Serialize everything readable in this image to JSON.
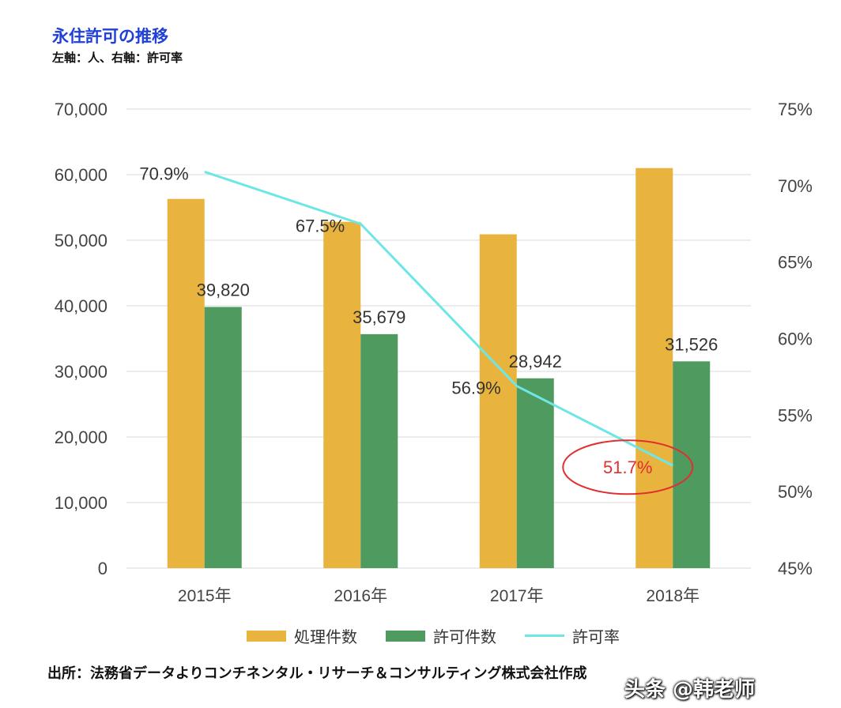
{
  "header": {
    "title": "永住許可の推移",
    "subtitle": "左軸：人、右軸：許可率"
  },
  "chart_data": {
    "type": "bar",
    "categories": [
      "2015年",
      "2016年",
      "2017年",
      "2018年"
    ],
    "series": [
      {
        "name": "処理件数",
        "kind": "bar",
        "axis": "left",
        "color": "#e8b43e",
        "values": [
          56300,
          52800,
          50900,
          61000
        ]
      },
      {
        "name": "許可件数",
        "kind": "bar",
        "axis": "left",
        "color": "#4e9a5f",
        "values": [
          39820,
          35679,
          28942,
          31526
        ],
        "labels": [
          "39,820",
          "35,679",
          "28,942",
          "31,526"
        ]
      },
      {
        "name": "許可率",
        "kind": "line",
        "axis": "right",
        "color": "#6ee6e6",
        "values": [
          70.9,
          67.5,
          56.9,
          51.7
        ],
        "labels": [
          "70.9%",
          "67.5%",
          "56.9%",
          "51.7%"
        ]
      }
    ],
    "y_left": {
      "range": [
        0,
        70000
      ],
      "ticks": [
        "70,000",
        "60,000",
        "50,000",
        "40,000",
        "30,000",
        "20,000",
        "10,000",
        "0"
      ]
    },
    "y_right": {
      "range": [
        45,
        75
      ],
      "ticks": [
        "75%",
        "70%",
        "65%",
        "60%",
        "55%",
        "50%",
        "45%"
      ]
    },
    "grid": true,
    "legend_position": "bottom",
    "highlight": {
      "label": "51.7%",
      "color": "#e03030"
    }
  },
  "footer": {
    "source": "出所：法務省データよりコンチネンタル・リサーチ＆コンサルティング株式会社作成",
    "watermark": "头条 @韩老师"
  }
}
